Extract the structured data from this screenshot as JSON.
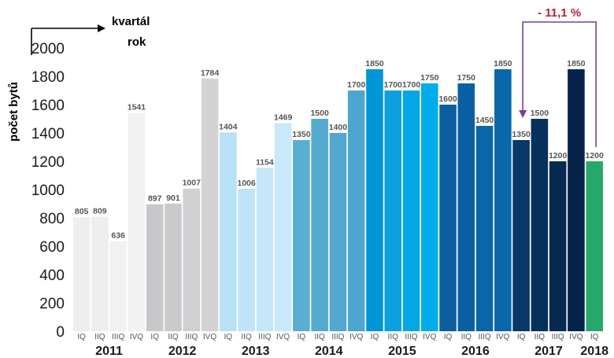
{
  "chart_data": {
    "type": "bar",
    "ylabel": "počet bytů",
    "xlabel_line1": "kvartál",
    "xlabel_line2": "rok",
    "ylim": [
      0,
      2000
    ],
    "yticks": [
      0,
      200,
      400,
      600,
      800,
      1000,
      1200,
      1400,
      1600,
      1800,
      2000
    ],
    "grid": false,
    "categories": [
      "IQ",
      "IIQ",
      "IIIQ",
      "IVQ",
      "IQ",
      "IIQ",
      "IIIQ",
      "IVQ",
      "IQ",
      "IIQ",
      "IIIQ",
      "IVQ",
      "IQ",
      "IIQ",
      "IIIQ",
      "IVQ",
      "IQ",
      "IIQ",
      "IIIQ",
      "IVQ",
      "IQ",
      "IIQ",
      "IIIQ",
      "IVQ",
      "IQ",
      "IIQ",
      "IIIQ",
      "IVQ",
      "IQ"
    ],
    "values": [
      805,
      809,
      636,
      1541,
      897,
      901,
      1007,
      1784,
      1404,
      1006,
      1154,
      1469,
      1350,
      1500,
      1400,
      1700,
      1850,
      1700,
      1700,
      1750,
      1600,
      1750,
      1450,
      1850,
      1350,
      1500,
      1200,
      1850,
      1200
    ],
    "years": [
      {
        "label": "2011",
        "start": 0,
        "count": 4
      },
      {
        "label": "2012",
        "start": 4,
        "count": 4
      },
      {
        "label": "2013",
        "start": 8,
        "count": 4
      },
      {
        "label": "2014",
        "start": 12,
        "count": 4
      },
      {
        "label": "2015",
        "start": 16,
        "count": 4
      },
      {
        "label": "2016",
        "start": 20,
        "count": 4
      },
      {
        "label": "2017",
        "start": 24,
        "count": 4
      },
      {
        "label": "2018",
        "start": 28,
        "count": 1
      }
    ],
    "colors": [
      "#eeeeef",
      "#eeeeef",
      "#f1f1f2",
      "#f2f2f3",
      "#c8c8cb",
      "#cacacd",
      "#d0d0d3",
      "#d3d3d6",
      "#b8e0f6",
      "#bfe4f7",
      "#c5e6f8",
      "#c9e8f9",
      "#5aaed2",
      "#55aad0",
      "#52a8cf",
      "#4ea6ce",
      "#0096d8",
      "#0ba0df",
      "#06a7e6",
      "#00acea",
      "#0c5f9f",
      "#0a60a2",
      "#0b65a6",
      "#0a67aa",
      "#073866",
      "#06315c",
      "#062a52",
      "#06244a",
      "#27a86a"
    ],
    "annotation": {
      "text": "- 11,1 %",
      "from_index": 28,
      "to_index": 24,
      "color": "#b5213f",
      "arrow_color": "#7a3f9a"
    }
  }
}
